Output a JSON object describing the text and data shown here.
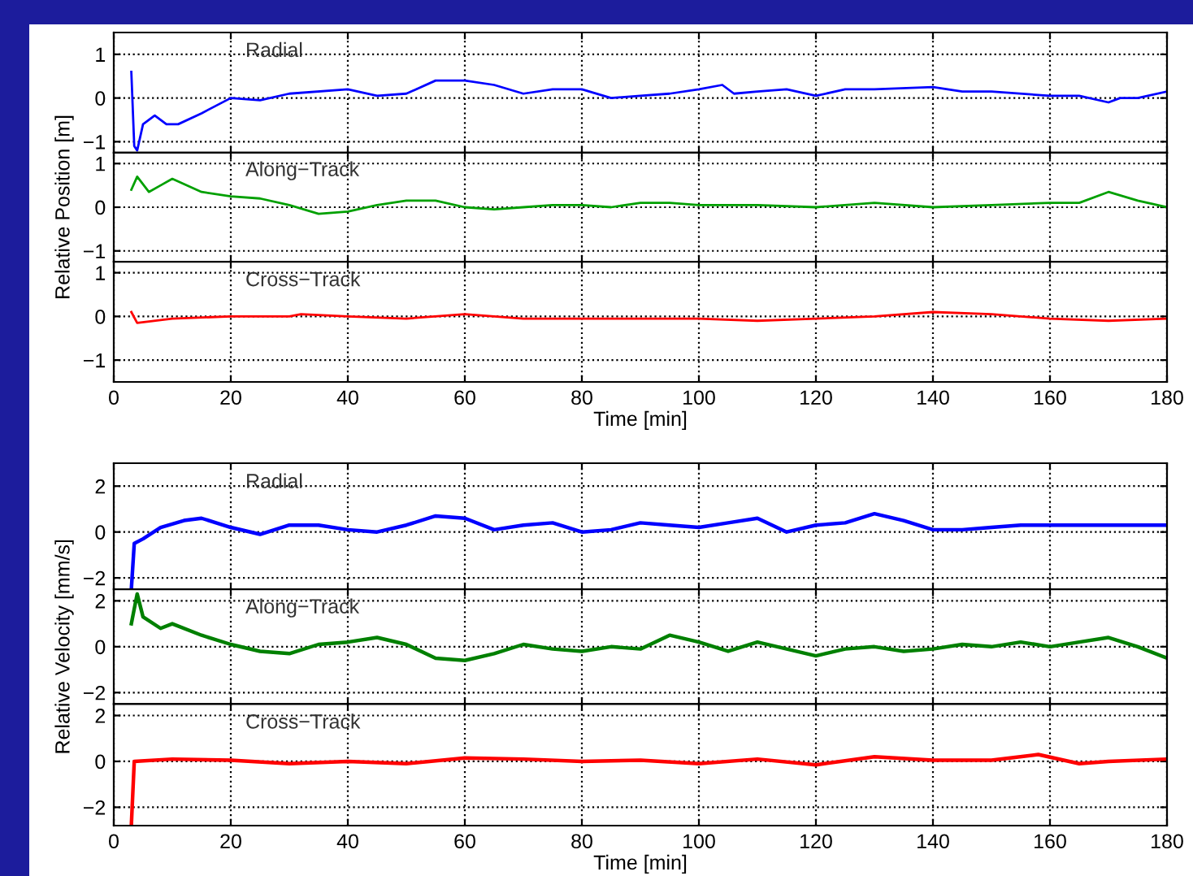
{
  "chart_data": [
    {
      "type": "line",
      "x": [
        3,
        3.5,
        4,
        5,
        7,
        9,
        11,
        15,
        20,
        25,
        30,
        40,
        45,
        50,
        55,
        60,
        65,
        70,
        75,
        80,
        85,
        90,
        95,
        100,
        104,
        106,
        110,
        115,
        120,
        125,
        130,
        140,
        145,
        150,
        160,
        165,
        170,
        172,
        175,
        180
      ],
      "series": [
        {
          "color": "#0000ff",
          "values": [
            0.6,
            -1.1,
            -1.2,
            -0.6,
            -0.4,
            -0.6,
            -0.6,
            -0.35,
            0,
            -0.05,
            0.1,
            0.2,
            0.05,
            0.1,
            0.4,
            0.4,
            0.3,
            0.1,
            0.2,
            0.2,
            0.0,
            0.05,
            0.1,
            0.2,
            0.3,
            0.1,
            0.15,
            0.2,
            0.05,
            0.2,
            0.2,
            0.25,
            0.15,
            0.15,
            0.05,
            0.05,
            -0.1,
            0.0,
            0.0,
            0.15
          ]
        }
      ],
      "xlim": [
        0,
        180
      ],
      "xticks": [
        0,
        20,
        40,
        60,
        80,
        100,
        120,
        140,
        160,
        180
      ],
      "ylim": [
        -1.25,
        1.5
      ],
      "yticks": [
        -1,
        0,
        1
      ],
      "grid": true,
      "tick_labels": "y",
      "annotations": [
        "Radial"
      ]
    },
    {
      "type": "line",
      "x": [
        3,
        4,
        6,
        8,
        10,
        15,
        20,
        25,
        30,
        35,
        40,
        45,
        50,
        55,
        60,
        65,
        70,
        75,
        80,
        85,
        90,
        95,
        100,
        110,
        120,
        130,
        140,
        150,
        160,
        165,
        170,
        175,
        180
      ],
      "series": [
        {
          "color": "#00a000",
          "values": [
            0.4,
            0.7,
            0.35,
            0.5,
            0.65,
            0.35,
            0.25,
            0.2,
            0.05,
            -0.15,
            -0.1,
            0.05,
            0.15,
            0.15,
            0.0,
            -0.05,
            0,
            0.05,
            0.05,
            0.0,
            0.1,
            0.1,
            0.05,
            0.05,
            0.0,
            0.1,
            0.0,
            0.05,
            0.1,
            0.1,
            0.35,
            0.15,
            0.0
          ]
        }
      ],
      "xlim": [
        0,
        180
      ],
      "xticks": [
        0,
        20,
        40,
        60,
        80,
        100,
        120,
        140,
        160,
        180
      ],
      "ylim": [
        -1.25,
        1.25
      ],
      "yticks": [
        -1,
        0,
        1
      ],
      "grid": true,
      "tick_labels": "y",
      "ylabel": "Relative Position [m]",
      "annotations": [
        "Along−Track"
      ]
    },
    {
      "type": "line",
      "x": [
        3,
        4,
        10,
        20,
        30,
        32,
        40,
        50,
        60,
        70,
        80,
        90,
        100,
        110,
        120,
        130,
        140,
        150,
        160,
        170,
        180
      ],
      "series": [
        {
          "color": "#ff0000",
          "values": [
            0.1,
            -0.15,
            -0.05,
            0,
            0,
            0.05,
            0,
            -0.05,
            0.05,
            -0.05,
            -0.05,
            -0.05,
            -0.05,
            -0.1,
            -0.05,
            0.0,
            0.1,
            0.05,
            -0.05,
            -0.1,
            -0.05
          ]
        }
      ],
      "xlim": [
        0,
        180
      ],
      "xticks": [
        0,
        20,
        40,
        60,
        80,
        100,
        120,
        140,
        160,
        180
      ],
      "ylim": [
        -1.5,
        1.25
      ],
      "yticks": [
        -1,
        0,
        1
      ],
      "grid": true,
      "xlabel": "Time [min]",
      "annotations": [
        "Cross−Track"
      ]
    },
    {
      "type": "line",
      "x": [
        3,
        3.5,
        5,
        8,
        12,
        15,
        20,
        25,
        30,
        35,
        40,
        45,
        50,
        55,
        60,
        65,
        70,
        75,
        80,
        85,
        90,
        95,
        100,
        105,
        110,
        115,
        120,
        125,
        130,
        135,
        140,
        145,
        150,
        155,
        160,
        165,
        170,
        175,
        180
      ],
      "series": [
        {
          "color": "#0000ff",
          "values": [
            -2.5,
            -0.5,
            -0.3,
            0.2,
            0.5,
            0.6,
            0.2,
            -0.1,
            0.3,
            0.3,
            0.1,
            0,
            0.3,
            0.7,
            0.6,
            0.1,
            0.3,
            0.4,
            0.0,
            0.1,
            0.4,
            0.3,
            0.2,
            0.4,
            0.6,
            0.0,
            0.3,
            0.4,
            0.8,
            0.5,
            0.1,
            0.1,
            0.2,
            0.3,
            0.3,
            0.3,
            0.3,
            0.3,
            0.3
          ]
        }
      ],
      "xlim": [
        0,
        180
      ],
      "xticks": [
        0,
        20,
        40,
        60,
        80,
        100,
        120,
        140,
        160,
        180
      ],
      "ylim": [
        -2.5,
        3
      ],
      "yticks": [
        -2,
        0,
        2
      ],
      "grid": true,
      "tick_labels": "y",
      "annotations": [
        "Radial"
      ]
    },
    {
      "type": "line",
      "x": [
        3,
        4,
        5,
        8,
        10,
        15,
        20,
        25,
        30,
        35,
        40,
        45,
        50,
        55,
        60,
        65,
        70,
        75,
        80,
        85,
        90,
        95,
        100,
        105,
        110,
        115,
        120,
        125,
        130,
        135,
        140,
        145,
        150,
        155,
        160,
        165,
        170,
        175,
        180
      ],
      "series": [
        {
          "color": "#008000",
          "values": [
            1.0,
            2.3,
            1.3,
            0.8,
            1.0,
            0.5,
            0.1,
            -0.2,
            -0.3,
            0.1,
            0.2,
            0.4,
            0.1,
            -0.5,
            -0.6,
            -0.3,
            0.1,
            -0.1,
            -0.2,
            0.0,
            -0.1,
            0.5,
            0.2,
            -0.2,
            0.2,
            -0.1,
            -0.4,
            -0.1,
            0.0,
            -0.2,
            -0.1,
            0.1,
            0.0,
            0.2,
            0.0,
            0.2,
            0.4,
            0.0,
            -0.5
          ]
        }
      ],
      "xlim": [
        0,
        180
      ],
      "xticks": [
        0,
        20,
        40,
        60,
        80,
        100,
        120,
        140,
        160,
        180
      ],
      "ylim": [
        -2.5,
        2.5
      ],
      "yticks": [
        -2,
        0,
        2
      ],
      "grid": true,
      "tick_labels": "y",
      "ylabel": "Relative Velocity [mm/s]",
      "annotations": [
        "Along−Track"
      ]
    },
    {
      "type": "line",
      "x": [
        3,
        3.5,
        10,
        20,
        30,
        40,
        50,
        60,
        70,
        80,
        90,
        100,
        110,
        120,
        130,
        140,
        150,
        158,
        165,
        170,
        180
      ],
      "series": [
        {
          "color": "#ff0000",
          "values": [
            -2.8,
            0,
            0.1,
            0.05,
            -0.1,
            0.0,
            -0.1,
            0.15,
            0.1,
            0.0,
            0.05,
            -0.1,
            0.1,
            -0.15,
            0.2,
            0.05,
            0.05,
            0.3,
            -0.1,
            0.0,
            0.1
          ]
        }
      ],
      "xlim": [
        0,
        180
      ],
      "xticks": [
        0,
        20,
        40,
        60,
        80,
        100,
        120,
        140,
        160,
        180
      ],
      "ylim": [
        -2.8,
        2.5
      ],
      "yticks": [
        -2,
        0,
        2
      ],
      "grid": true,
      "xlabel": "Time [min]",
      "annotations": [
        "Cross−Track"
      ]
    }
  ]
}
